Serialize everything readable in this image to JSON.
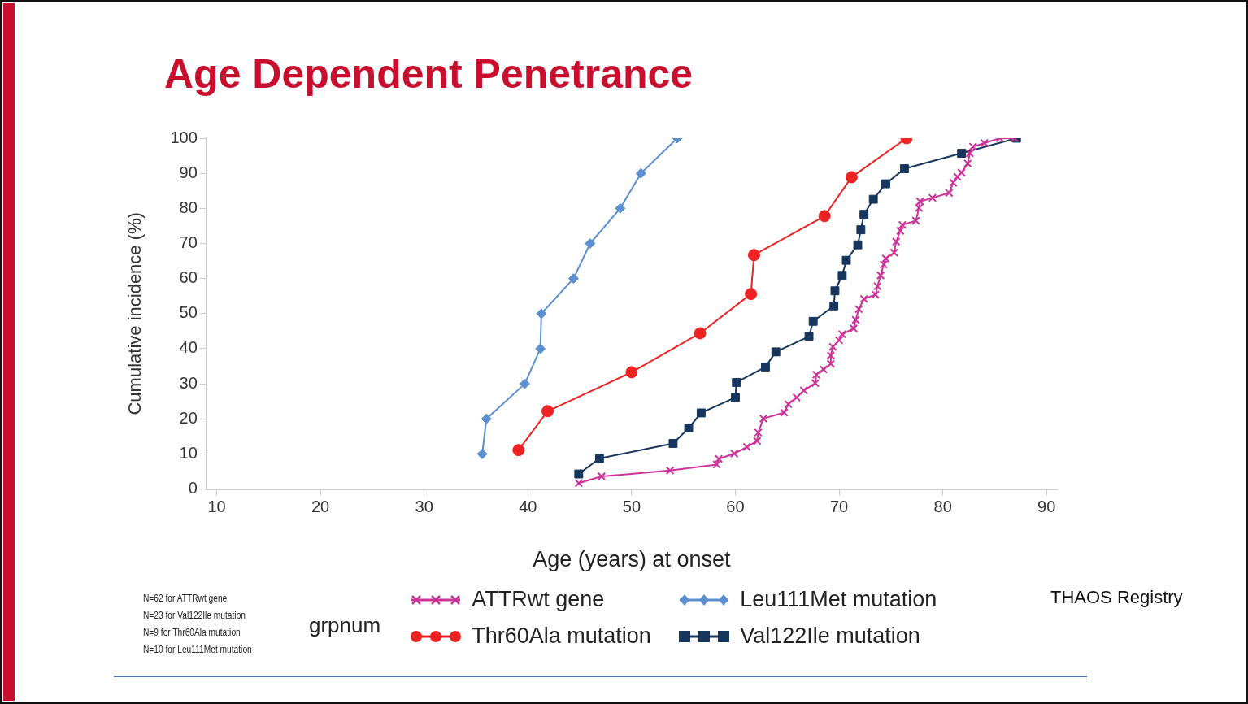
{
  "chart_data": {
    "type": "line",
    "title": "Age Dependent Penetrance",
    "xlabel": "Age (years) at onset",
    "ylabel": "Cumulative incidence (%)",
    "legend_title": "grpnum",
    "xlim": [
      9,
      91
    ],
    "xticks": [
      10,
      20,
      30,
      40,
      50,
      60,
      70,
      80,
      90
    ],
    "ylim": [
      0,
      100
    ],
    "yticks": [
      0,
      10,
      20,
      30,
      40,
      50,
      60,
      70,
      80,
      90,
      100
    ],
    "grid": false,
    "legend": "bottom",
    "annotations": [
      "N=62 for ATTRwt gene",
      "N=23 for Val122Ile mutation",
      "N=9 for Thr60Ala mutation",
      "N=10 for Leu111Met mutation",
      "THAOS Registry"
    ],
    "series": [
      {
        "name": "ATTRwt gene",
        "color": "#cc3399",
        "marker": "cross",
        "x": [
          44.9,
          47.1,
          53.7,
          58.2,
          58.4,
          59.9,
          61.1,
          62.1,
          62.2,
          62.7,
          64.7,
          65.1,
          65.9,
          66.6,
          67.7,
          67.8,
          68.5,
          69.2,
          69.2,
          69.4,
          70.0,
          70.3,
          71.4,
          71.6,
          71.9,
          72.4,
          73.5,
          73.7,
          74.0,
          74.3,
          74.5,
          75.3,
          75.5,
          75.9,
          76.1,
          77.4,
          77.7,
          77.8,
          79.0,
          80.6,
          81.0,
          81.4,
          81.8,
          82.4,
          82.6,
          82.9,
          84.0,
          85.5,
          86.9
        ],
        "values": [
          1.7,
          3.6,
          5.3,
          7.0,
          8.6,
          10.1,
          12.0,
          13.7,
          16.1,
          20.1,
          21.8,
          24.2,
          26.1,
          28.1,
          30.2,
          32.6,
          34.1,
          35.7,
          38.1,
          40.5,
          42.4,
          44.1,
          45.8,
          48.2,
          51.3,
          54.2,
          55.4,
          57.8,
          60.9,
          64.0,
          65.7,
          67.4,
          70.5,
          73.6,
          75.3,
          76.5,
          80.1,
          82.0,
          83.0,
          84.4,
          87.3,
          89.0,
          90.2,
          92.8,
          95.7,
          97.6,
          98.6,
          100,
          100
        ]
      },
      {
        "name": "Thr60Ala mutation",
        "color": "#ee2222",
        "marker": "circle",
        "x": [
          39.1,
          41.9,
          50.0,
          56.6,
          61.5,
          61.8,
          68.6,
          71.2,
          76.5
        ],
        "values": [
          11.1,
          22.2,
          33.3,
          44.4,
          55.6,
          66.7,
          77.8,
          88.9,
          100
        ]
      },
      {
        "name": "Leu111Met mutation",
        "color": "#5b8fd0",
        "marker": "diamond",
        "x": [
          35.6,
          36.0,
          39.7,
          41.2,
          41.3,
          44.4,
          46.0,
          48.9,
          50.9,
          54.4
        ],
        "values": [
          10,
          20,
          30,
          40,
          50,
          60,
          70,
          80,
          90,
          100
        ]
      },
      {
        "name": "Val122Ile mutation",
        "color": "#16365e",
        "marker": "square",
        "x": [
          44.9,
          46.9,
          54.0,
          55.5,
          56.7,
          60.0,
          60.1,
          62.9,
          63.9,
          67.1,
          67.5,
          69.5,
          69.6,
          70.3,
          70.7,
          71.8,
          72.1,
          72.4,
          73.3,
          74.5,
          76.3,
          81.8,
          87.1
        ],
        "values": [
          4.3,
          8.7,
          13.0,
          17.4,
          21.7,
          26.1,
          30.4,
          34.8,
          39.1,
          43.5,
          47.8,
          52.2,
          56.5,
          60.9,
          65.2,
          69.6,
          73.9,
          78.3,
          82.6,
          87.0,
          91.3,
          95.7,
          100
        ]
      }
    ]
  }
}
